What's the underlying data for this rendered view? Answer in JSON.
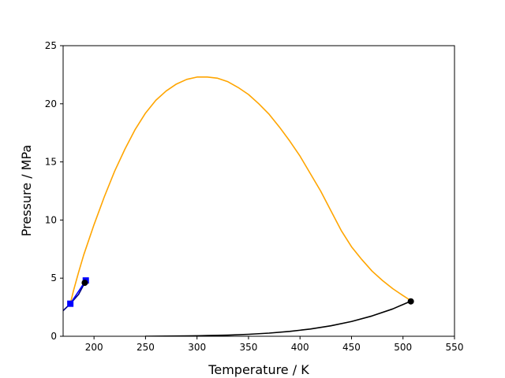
{
  "chart_data": {
    "type": "line",
    "title": "",
    "xlabel": "Temperature / K",
    "ylabel": "Pressure / MPa",
    "xlim": [
      170,
      550
    ],
    "ylim": [
      0,
      25
    ],
    "xticks": [
      200,
      250,
      300,
      350,
      400,
      450,
      500,
      550
    ],
    "yticks": [
      0,
      5,
      10,
      15,
      20,
      25
    ],
    "grid": false,
    "legend": "none",
    "series": [
      {
        "color": "#ffa500",
        "line": true,
        "marker": "none",
        "x": [
          177,
          180,
          185,
          190,
          200,
          210,
          220,
          230,
          240,
          250,
          260,
          270,
          280,
          290,
          300,
          310,
          320,
          330,
          340,
          350,
          360,
          370,
          380,
          390,
          400,
          410,
          420,
          430,
          440,
          450,
          460,
          470,
          480,
          490,
          500,
          507
        ],
        "y": [
          2.8,
          3.9,
          5.5,
          7.0,
          9.6,
          12.0,
          14.2,
          16.1,
          17.8,
          19.2,
          20.3,
          21.1,
          21.7,
          22.1,
          22.3,
          22.3,
          22.2,
          21.9,
          21.4,
          20.8,
          20.0,
          19.1,
          18.0,
          16.8,
          15.5,
          14.0,
          12.5,
          10.8,
          9.1,
          7.7,
          6.6,
          5.6,
          4.8,
          4.1,
          3.5,
          3.1
        ]
      },
      {
        "color": "#000000",
        "line": true,
        "marker": "none",
        "x": [
          250,
          270,
          290,
          310,
          330,
          350,
          370,
          390,
          410,
          430,
          450,
          470,
          490,
          507
        ],
        "y": [
          0.0,
          0.01,
          0.03,
          0.06,
          0.1,
          0.17,
          0.27,
          0.42,
          0.62,
          0.9,
          1.27,
          1.75,
          2.35,
          3.0
        ]
      },
      {
        "color": "#000080",
        "line": true,
        "marker": "none",
        "x": [
          170,
          177,
          185,
          191
        ],
        "y": [
          2.2,
          2.8,
          3.6,
          4.6
        ]
      },
      {
        "color": "#0000ff",
        "line": true,
        "marker": "square",
        "x": [
          177,
          192
        ],
        "y": [
          2.8,
          4.8
        ]
      },
      {
        "color": "#000000",
        "line": false,
        "marker": "circle",
        "x": [
          191,
          507.6
        ],
        "y": [
          4.6,
          3.0
        ]
      }
    ]
  }
}
